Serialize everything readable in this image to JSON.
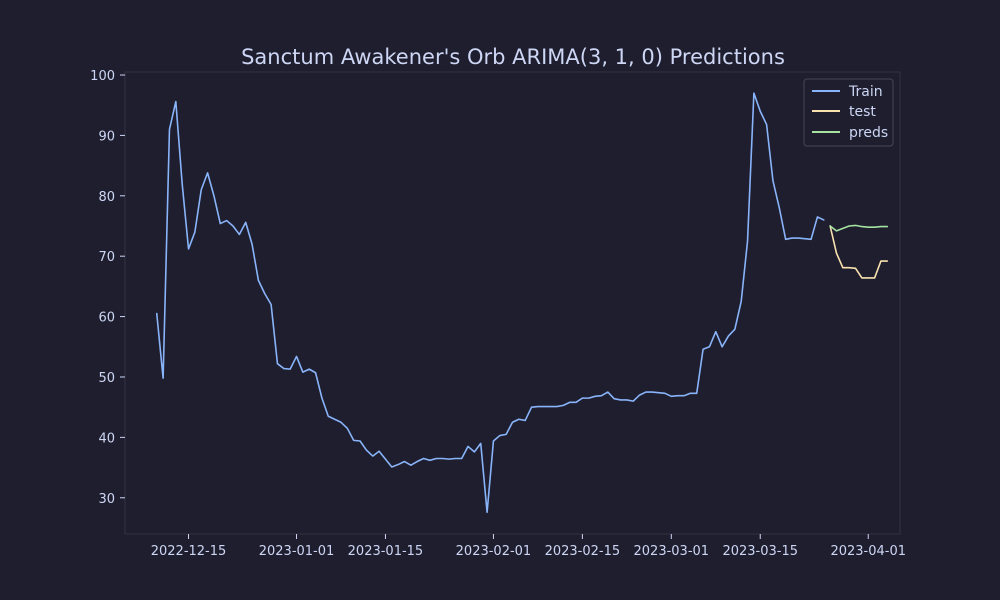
{
  "chart_data": {
    "type": "line",
    "title": "Sanctum Awakener's Orb ARIMA(3, 1, 0) Predictions",
    "xlabel": "",
    "ylabel": "",
    "x_range": [
      "2022-12-05",
      "2023-04-06"
    ],
    "ylim": [
      24,
      100.5
    ],
    "y_ticks": [
      30,
      40,
      50,
      60,
      70,
      80,
      90,
      100
    ],
    "x_ticks": [
      "2022-12-15",
      "2023-01-01",
      "2023-01-15",
      "2023-02-01",
      "2023-02-15",
      "2023-03-01",
      "2023-03-15",
      "2023-04-01"
    ],
    "grid": false,
    "legend_position": "top-right",
    "colors": {
      "background": "#1e1e2e",
      "text": "#cdd6f4",
      "spine": "#313244",
      "train": "#89b4fa",
      "test": "#f9e2af",
      "preds": "#a6e3a1"
    },
    "series": [
      {
        "name": "Train",
        "color_key": "train",
        "points": [
          [
            "2022-12-10",
            60.5
          ],
          [
            "2022-12-11",
            49.8
          ],
          [
            "2022-12-12",
            91.0
          ],
          [
            "2022-12-13",
            95.6
          ],
          [
            "2022-12-14",
            82.0
          ],
          [
            "2022-12-15",
            71.2
          ],
          [
            "2022-12-16",
            74.0
          ],
          [
            "2022-12-17",
            81.0
          ],
          [
            "2022-12-18",
            83.8
          ],
          [
            "2022-12-19",
            80.0
          ],
          [
            "2022-12-20",
            75.4
          ],
          [
            "2022-12-21",
            75.9
          ],
          [
            "2022-12-22",
            75.0
          ],
          [
            "2022-12-23",
            73.6
          ],
          [
            "2022-12-24",
            75.6
          ],
          [
            "2022-12-25",
            72.0
          ],
          [
            "2022-12-26",
            66.0
          ],
          [
            "2022-12-27",
            63.8
          ],
          [
            "2022-12-28",
            62.0
          ],
          [
            "2022-12-29",
            52.2
          ],
          [
            "2022-12-30",
            51.4
          ],
          [
            "2022-12-31",
            51.3
          ],
          [
            "2023-01-01",
            53.4
          ],
          [
            "2023-01-02",
            50.8
          ],
          [
            "2023-01-03",
            51.3
          ],
          [
            "2023-01-04",
            50.7
          ],
          [
            "2023-01-05",
            46.5
          ],
          [
            "2023-01-06",
            43.5
          ],
          [
            "2023-01-07",
            43.0
          ],
          [
            "2023-01-08",
            42.5
          ],
          [
            "2023-01-09",
            41.5
          ],
          [
            "2023-01-10",
            39.5
          ],
          [
            "2023-01-11",
            39.4
          ],
          [
            "2023-01-12",
            37.9
          ],
          [
            "2023-01-13",
            36.9
          ],
          [
            "2023-01-14",
            37.7
          ],
          [
            "2023-01-15",
            36.4
          ],
          [
            "2023-01-16",
            35.1
          ],
          [
            "2023-01-17",
            35.5
          ],
          [
            "2023-01-18",
            36.0
          ],
          [
            "2023-01-19",
            35.4
          ],
          [
            "2023-01-20",
            36.0
          ],
          [
            "2023-01-21",
            36.5
          ],
          [
            "2023-01-22",
            36.2
          ],
          [
            "2023-01-23",
            36.5
          ],
          [
            "2023-01-24",
            36.5
          ],
          [
            "2023-01-25",
            36.4
          ],
          [
            "2023-01-26",
            36.5
          ],
          [
            "2023-01-27",
            36.5
          ],
          [
            "2023-01-28",
            38.5
          ],
          [
            "2023-01-29",
            37.6
          ],
          [
            "2023-01-30",
            39.0
          ],
          [
            "2023-01-31",
            27.6
          ],
          [
            "2023-02-01",
            39.4
          ],
          [
            "2023-02-02",
            40.3
          ],
          [
            "2023-02-03",
            40.5
          ],
          [
            "2023-02-04",
            42.5
          ],
          [
            "2023-02-05",
            43.0
          ],
          [
            "2023-02-06",
            42.8
          ],
          [
            "2023-02-07",
            45.0
          ],
          [
            "2023-02-08",
            45.1
          ],
          [
            "2023-02-09",
            45.1
          ],
          [
            "2023-02-10",
            45.1
          ],
          [
            "2023-02-11",
            45.1
          ],
          [
            "2023-02-12",
            45.3
          ],
          [
            "2023-02-13",
            45.8
          ],
          [
            "2023-02-14",
            45.8
          ],
          [
            "2023-02-15",
            46.5
          ],
          [
            "2023-02-16",
            46.5
          ],
          [
            "2023-02-17",
            46.8
          ],
          [
            "2023-02-18",
            46.9
          ],
          [
            "2023-02-19",
            47.5
          ],
          [
            "2023-02-20",
            46.4
          ],
          [
            "2023-02-21",
            46.2
          ],
          [
            "2023-02-22",
            46.2
          ],
          [
            "2023-02-23",
            46.0
          ],
          [
            "2023-02-24",
            47.0
          ],
          [
            "2023-02-25",
            47.5
          ],
          [
            "2023-02-26",
            47.5
          ],
          [
            "2023-02-27",
            47.4
          ],
          [
            "2023-02-28",
            47.3
          ],
          [
            "2023-03-01",
            46.8
          ],
          [
            "2023-03-02",
            46.9
          ],
          [
            "2023-03-03",
            46.9
          ],
          [
            "2023-03-04",
            47.3
          ],
          [
            "2023-03-05",
            47.3
          ],
          [
            "2023-03-06",
            54.6
          ],
          [
            "2023-03-07",
            55.0
          ],
          [
            "2023-03-08",
            57.5
          ],
          [
            "2023-03-09",
            55.0
          ],
          [
            "2023-03-10",
            56.8
          ],
          [
            "2023-03-11",
            57.9
          ],
          [
            "2023-03-12",
            62.5
          ],
          [
            "2023-03-13",
            72.5
          ],
          [
            "2023-03-14",
            97.0
          ],
          [
            "2023-03-15",
            94.0
          ],
          [
            "2023-03-16",
            91.8
          ],
          [
            "2023-03-17",
            82.5
          ],
          [
            "2023-03-18",
            78.0
          ],
          [
            "2023-03-19",
            72.8
          ],
          [
            "2023-03-20",
            73.0
          ],
          [
            "2023-03-21",
            73.0
          ],
          [
            "2023-03-22",
            72.9
          ],
          [
            "2023-03-23",
            72.8
          ],
          [
            "2023-03-24",
            76.5
          ],
          [
            "2023-03-25",
            76.0
          ]
        ]
      },
      {
        "name": "test",
        "color_key": "test",
        "points": [
          [
            "2023-03-26",
            75.0
          ],
          [
            "2023-03-27",
            70.5
          ],
          [
            "2023-03-28",
            68.1
          ],
          [
            "2023-03-29",
            68.1
          ],
          [
            "2023-03-30",
            68.0
          ],
          [
            "2023-03-31",
            66.4
          ],
          [
            "2023-04-01",
            66.4
          ],
          [
            "2023-04-02",
            66.4
          ],
          [
            "2023-04-03",
            69.2
          ],
          [
            "2023-04-04",
            69.2
          ]
        ]
      },
      {
        "name": "preds",
        "color_key": "preds",
        "points": [
          [
            "2023-03-26",
            75.0
          ],
          [
            "2023-03-27",
            74.2
          ],
          [
            "2023-03-28",
            74.6
          ],
          [
            "2023-03-29",
            75.0
          ],
          [
            "2023-03-30",
            75.1
          ],
          [
            "2023-03-31",
            74.9
          ],
          [
            "2023-04-01",
            74.8
          ],
          [
            "2023-04-02",
            74.8
          ],
          [
            "2023-04-03",
            74.9
          ],
          [
            "2023-04-04",
            74.9
          ]
        ]
      }
    ]
  }
}
